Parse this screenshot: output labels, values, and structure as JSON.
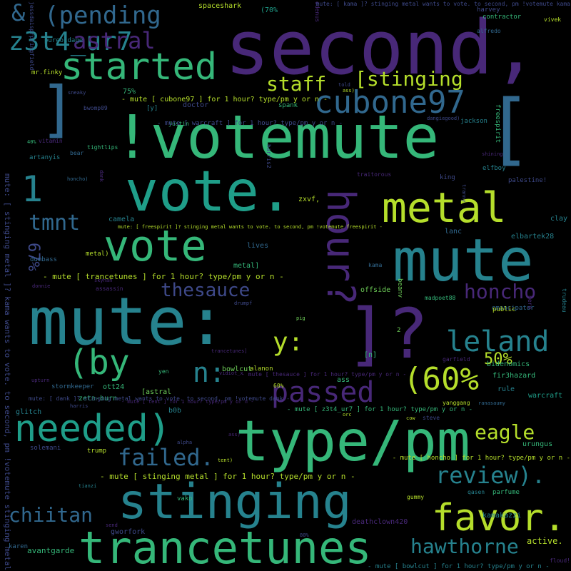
{
  "palette": {
    "background": "#000000",
    "viridis": [
      "#440154",
      "#482878",
      "#3e4989",
      "#31688e",
      "#26828e",
      "#1f9e89",
      "#35b779",
      "#6ece58",
      "#b5de2b",
      "#fde725"
    ]
  },
  "words": [
    {
      "text": "second,",
      "color": "#482878"
    },
    {
      "text": "!votemute",
      "color": "#35b779"
    },
    {
      "text": "mute:",
      "color": "#26828e"
    },
    {
      "text": "vote.",
      "color": "#1f9e89"
    },
    {
      "text": "type/pm",
      "color": "#35b779"
    },
    {
      "text": "mute",
      "color": "#26828e"
    },
    {
      "text": "stinging",
      "color": "#26828e"
    },
    {
      "text": "trancetunes",
      "color": "#35b779"
    },
    {
      "text": "]?",
      "color": "#482878"
    },
    {
      "text": "[",
      "color": "#31688e"
    },
    {
      "text": "metal",
      "color": "#b5de2b"
    },
    {
      "text": "vote",
      "color": "#35b779"
    },
    {
      "text": "favor.",
      "color": "#b5de2b"
    },
    {
      "text": "needed)",
      "color": "#1f9e89"
    },
    {
      "text": "]",
      "color": "#31688e"
    },
    {
      "text": "started",
      "color": "#35b779"
    },
    {
      "text": "(by",
      "color": "#35b779"
    },
    {
      "text": "cubone97",
      "color": "#31688e"
    },
    {
      "text": "passed",
      "color": "#482878"
    },
    {
      "text": "(60%",
      "color": "#b5de2b"
    },
    {
      "text": "leland",
      "color": "#26828e"
    },
    {
      "text": "(pending",
      "color": "#31688e"
    },
    {
      "text": "hour?",
      "color": "#482878"
    },
    {
      "text": "z3t4_ur7",
      "color": "#26828e"
    },
    {
      "text": "&",
      "color": "#31688e"
    },
    {
      "text": "y:",
      "color": "#b5de2b"
    },
    {
      "text": "n:",
      "color": "#26828e"
    },
    {
      "text": "failed.",
      "color": "#31688e"
    },
    {
      "text": "review).",
      "color": "#26828e"
    },
    {
      "text": "hawthorne",
      "color": "#26828e"
    },
    {
      "text": "chiitan",
      "color": "#31688e"
    },
    {
      "text": "eagle",
      "color": "#b5de2b"
    },
    {
      "text": "honcho",
      "color": "#482878"
    },
    {
      "text": "thesauce",
      "color": "#3e4989"
    },
    {
      "text": "astral",
      "color": "#482878"
    },
    {
      "text": "staff",
      "color": "#b5de2b"
    },
    {
      "text": "[stinging",
      "color": "#b5de2b"
    },
    {
      "text": "tmnt",
      "color": "#31688e"
    },
    {
      "text": "1",
      "color": "#26828e"
    },
    {
      "text": "50%",
      "color": "#b5de2b"
    },
    {
      "text": "67%",
      "color": "#3e4989"
    },
    {
      "text": "active.",
      "color": "#b5de2b"
    },
    {
      "text": "avantgarde",
      "color": "#35b779"
    },
    {
      "text": "kamakazzi",
      "color": "#26828e"
    },
    {
      "text": "gworfork",
      "color": "#3e4989"
    },
    {
      "text": "deathclown420",
      "color": "#482878"
    },
    {
      "text": "spaceshark",
      "color": "#b5de2b"
    },
    {
      "text": "(70%",
      "color": "#1f9e89"
    },
    {
      "text": "harvey",
      "color": "#3e4989"
    },
    {
      "text": "contractor",
      "color": "#35b779"
    },
    {
      "text": "alfredo",
      "color": "#31688e"
    },
    {
      "text": "odenus",
      "color": "#482878"
    },
    {
      "text": "pureoldage",
      "color": "#26828e"
    },
    {
      "text": "mr.finky",
      "color": "#b5de2b"
    },
    {
      "text": "jessdaisprpringfield",
      "color": "#3e4989"
    },
    {
      "text": "75%",
      "color": "#35b779"
    },
    {
      "text": "bwomp09",
      "color": "#3e4989"
    },
    {
      "text": "[y]",
      "color": "#26828e"
    },
    {
      "text": "doctor",
      "color": "#3e4989"
    },
    {
      "text": "spank",
      "color": "#35b779"
    },
    {
      "text": "justin",
      "color": "#35b779"
    },
    {
      "text": "vitamin",
      "color": "#482878"
    },
    {
      "text": "40%",
      "color": "#35b779"
    },
    {
      "text": "artanyis",
      "color": "#26828e"
    },
    {
      "text": "tightlips",
      "color": "#35b779"
    },
    {
      "text": "bear",
      "color": "#31688e"
    },
    {
      "text": "jackson",
      "color": "#26828e"
    },
    {
      "text": "elfboy",
      "color": "#26828e"
    },
    {
      "text": "freespirit",
      "color": "#35b779"
    },
    {
      "text": "traitorous",
      "color": "#482878"
    },
    {
      "text": "king",
      "color": "#3e4989"
    },
    {
      "text": "palestine!",
      "color": "#3e4989"
    },
    {
      "text": "zxvf,",
      "color": "#b5de2b"
    },
    {
      "text": "camela",
      "color": "#26828e"
    },
    {
      "text": "lanc",
      "color": "#31688e"
    },
    {
      "text": "clay",
      "color": "#26828e"
    },
    {
      "text": "elbartek28",
      "color": "#26828e"
    },
    {
      "text": "dumbass",
      "color": "#31688e"
    },
    {
      "text": "metal)",
      "color": "#b5de2b"
    },
    {
      "text": "metal]",
      "color": "#35b779"
    },
    {
      "text": "lives",
      "color": "#31688e"
    },
    {
      "text": "kama",
      "color": "#31688e"
    },
    {
      "text": "offside",
      "color": "#6ece58"
    },
    {
      "text": "madpoet88",
      "color": "#35b779"
    },
    {
      "text": "beanv",
      "color": "#6ece58"
    },
    {
      "text": "emancipator",
      "color": "#31688e"
    },
    {
      "text": "public",
      "color": "#b5de2b"
    },
    {
      "text": "drumpf",
      "color": "#3e4989"
    },
    {
      "text": "assassin",
      "color": "#482878"
    },
    {
      "text": "donnie",
      "color": "#482878"
    },
    {
      "text": "skynan",
      "color": "#482878"
    },
    {
      "text": "pig",
      "color": "#6ece58"
    },
    {
      "text": "trudeau",
      "color": "#26828e"
    },
    {
      "text": "ass",
      "color": "#35b779"
    },
    {
      "text": "bidenomics",
      "color": "#35b779"
    },
    {
      "text": "fir3hazard",
      "color": "#35b779"
    },
    {
      "text": "rule",
      "color": "#26828e"
    },
    {
      "text": "warcraft",
      "color": "#1f9e89"
    },
    {
      "text": "bowlcut",
      "color": "#6ece58"
    },
    {
      "text": "[astral",
      "color": "#6ece58"
    },
    {
      "text": "60%",
      "color": "#b5de2b"
    },
    {
      "text": "ott24",
      "color": "#35b779"
    },
    {
      "text": "stormkeeper",
      "color": "#31688e"
    },
    {
      "text": "zeta-burn",
      "color": "#35b779"
    },
    {
      "text": "glitch",
      "color": "#26828e"
    },
    {
      "text": "b0b",
      "color": "#26828e"
    },
    {
      "text": "harris",
      "color": "#3e4989"
    },
    {
      "text": "yanggang",
      "color": "#b5de2b"
    },
    {
      "text": "ranasaumy",
      "color": "#31688e"
    },
    {
      "text": "steve",
      "color": "#3e4989"
    },
    {
      "text": "solemani",
      "color": "#3e4989"
    },
    {
      "text": "trump",
      "color": "#b5de2b"
    },
    {
      "text": "alpha",
      "color": "#3e4989"
    },
    {
      "text": "urungus",
      "color": "#35b779"
    },
    {
      "text": "parfume",
      "color": "#35b779"
    },
    {
      "text": "karen",
      "color": "#31688e"
    },
    {
      "text": "vako",
      "color": "#35b779"
    },
    {
      "text": "tianzi",
      "color": "#26828e"
    },
    {
      "text": "[n]",
      "color": "#35b779"
    },
    {
      "text": "alanon",
      "color": "#b5de2b"
    },
    {
      "text": "yen",
      "color": "#35b779"
    },
    {
      "text": "2",
      "color": "#6ece58"
    },
    {
      "text": "garfield",
      "color": "#482878"
    },
    {
      "text": "hero",
      "color": "#482878"
    },
    {
      "text": "vivek",
      "color": "#b5de2b"
    },
    {
      "text": "floud!",
      "color": "#482878"
    },
    {
      "text": "cow",
      "color": "#b5de2b"
    },
    {
      "text": "qasen",
      "color": "#26828e"
    },
    {
      "text": "gummy",
      "color": "#b5de2b"
    },
    {
      "text": "honcho)",
      "color": "#31688e"
    },
    {
      "text": "shining",
      "color": "#482878"
    },
    {
      "text": "dangiegood)",
      "color": "#3e4989"
    },
    {
      "text": "harris2",
      "color": "#3e4989"
    },
    {
      "text": "sneaky",
      "color": "#3e4989"
    },
    {
      "text": "tranny",
      "color": "#3e4989"
    },
    {
      "text": "dank",
      "color": "#482878"
    },
    {
      "text": "told",
      "color": "#3e4989"
    },
    {
      "text": "ass)",
      "color": "#b5de2b"
    },
    {
      "text": "upturn",
      "color": "#482878"
    },
    {
      "text": "send",
      "color": "#482878"
    },
    {
      "text": "80%",
      "color": "#3e4989"
    },
    {
      "text": "vidiot_x",
      "color": "#482878"
    },
    {
      "text": "tent)",
      "color": "#b5de2b"
    },
    {
      "text": "ass)",
      "color": "#482878"
    },
    {
      "text": "orc",
      "color": "#b5de2b"
    },
    {
      "text": "trancetunes]",
      "color": "#482878"
    },
    {
      "text": "-  mute [ trancetunes ] for 1 hour?  type/pm  y  or  n  -",
      "color": "#b5de2b"
    },
    {
      "text": "-  mute [ stinging metal ] for 1 hour?  type/pm  y  or  n  -",
      "color": "#b5de2b"
    },
    {
      "text": "-  mute [ cubone97 ] for 1 hour?  type/pm  y  or  n  -",
      "color": "#b5de2b"
    },
    {
      "text": "-  mute [ warcraft ] for 1 hour?  type/pm  y  or  n  -",
      "color": "#3e4989"
    },
    {
      "text": "-  mute [ honcho ] for 1 hour?  type/pm  y  or  n  -",
      "color": "#b5de2b"
    },
    {
      "text": "-  mute [ z3t4_ur7 ] for 1 hour?  type/pm  y  or  n  -",
      "color": "#35b779"
    },
    {
      "text": "-  mute [ bowlcut ] for 1 hour?  type/pm  y  or  n  -",
      "color": "#26828e"
    },
    {
      "text": "-  mute [ thesauce ] for 1 hour?  type/pm  y  or  n  -",
      "color": "#482878"
    },
    {
      "text": "-  mute [ tent ] for 1 hour?  type/pm  y  or  n  -",
      "color": "#482878"
    },
    {
      "text": "mute: [ freespirit ]?  stinging metal wants to vote.  to second, pm  !votemute freespirit  -",
      "color": "#b5de2b"
    },
    {
      "text": "mute: [ stinging metal ]?  kama wants to vote.  to second, pm  !votemute stinging metal",
      "color": "#3e4989"
    },
    {
      "text": "mute: [ kama ]?  stinging metal wants to vote.  to second, pm  !votemute kama",
      "color": "#3e4989"
    },
    {
      "text": "mute: [ dank ]?  stinging metal wants to vote.  to second, pm  !votemute dank  -",
      "color": "#3e4989"
    }
  ]
}
